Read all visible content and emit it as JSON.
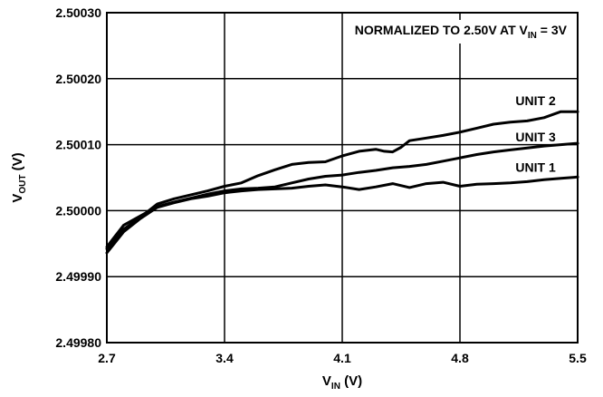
{
  "chart_data": {
    "type": "line",
    "title": "",
    "annotation": {
      "prefix": "NORMALIZED TO 2.50V AT V",
      "sub": "IN",
      "suffix": " = 3V"
    },
    "xlabel": {
      "main": "V",
      "sub": "IN",
      "suffix": " (V)"
    },
    "ylabel": {
      "main": "V",
      "sub": "OUT",
      "suffix": " (V)"
    },
    "xlim": [
      2.7,
      5.5
    ],
    "ylim": [
      2.4998,
      2.5003
    ],
    "xticks": [
      2.7,
      3.4,
      4.1,
      4.8,
      5.5
    ],
    "xtick_labels": [
      "2.7",
      "3.4",
      "4.1",
      "4.8",
      "5.5"
    ],
    "yticks": [
      2.4998,
      2.4999,
      2.5,
      2.5001,
      2.5002,
      2.5003
    ],
    "ytick_labels": [
      "2.49980",
      "2.49990",
      "2.50000",
      "2.50010",
      "2.50020",
      "2.50030"
    ],
    "grid": true,
    "line_color": "#000000",
    "series": [
      {
        "name": "UNIT 2",
        "x": [
          2.7,
          2.8,
          2.9,
          3.0,
          3.1,
          3.2,
          3.3,
          3.4,
          3.5,
          3.6,
          3.7,
          3.8,
          3.9,
          4.0,
          4.1,
          4.2,
          4.3,
          4.35,
          4.4,
          4.45,
          4.5,
          4.6,
          4.7,
          4.8,
          4.9,
          5.0,
          5.1,
          5.2,
          5.3,
          5.4,
          5.5
        ],
        "y": [
          2.499942,
          2.499972,
          2.49999,
          2.50001,
          2.500018,
          2.500024,
          2.50003,
          2.500037,
          2.500042,
          2.500053,
          2.500062,
          2.50007,
          2.500073,
          2.500074,
          2.500083,
          2.50009,
          2.500093,
          2.50009,
          2.500089,
          2.500096,
          2.500106,
          2.50011,
          2.500114,
          2.500119,
          2.500125,
          2.500131,
          2.500134,
          2.500136,
          2.500141,
          2.50015,
          2.50015
        ]
      },
      {
        "name": "UNIT 3",
        "x": [
          2.7,
          2.8,
          2.9,
          3.0,
          3.1,
          3.2,
          3.3,
          3.4,
          3.5,
          3.6,
          3.7,
          3.8,
          3.9,
          4.0,
          4.1,
          4.2,
          4.3,
          4.4,
          4.5,
          4.6,
          4.7,
          4.8,
          4.9,
          5.0,
          5.1,
          5.2,
          5.3,
          5.4,
          5.5
        ],
        "y": [
          2.499945,
          2.499978,
          2.499992,
          2.500006,
          2.500013,
          2.500019,
          2.500025,
          2.50003,
          2.500033,
          2.500034,
          2.500036,
          2.500042,
          2.500048,
          2.500052,
          2.500054,
          2.500058,
          2.500061,
          2.500065,
          2.500067,
          2.50007,
          2.500075,
          2.50008,
          2.500085,
          2.500089,
          2.500092,
          2.500095,
          2.500098,
          2.5001,
          2.500102
        ]
      },
      {
        "name": "UNIT 1",
        "x": [
          2.7,
          2.8,
          2.9,
          3.0,
          3.1,
          3.2,
          3.3,
          3.4,
          3.5,
          3.6,
          3.7,
          3.8,
          3.9,
          4.0,
          4.1,
          4.2,
          4.3,
          4.4,
          4.5,
          4.6,
          4.7,
          4.8,
          4.9,
          5.0,
          5.1,
          5.2,
          5.3,
          5.4,
          5.5
        ],
        "y": [
          2.499936,
          2.499968,
          2.499988,
          2.500005,
          2.500012,
          2.500018,
          2.500022,
          2.500027,
          2.50003,
          2.500032,
          2.500033,
          2.500034,
          2.500037,
          2.500039,
          2.500036,
          2.500032,
          2.500036,
          2.500041,
          2.500035,
          2.500041,
          2.500043,
          2.500037,
          2.50004,
          2.500041,
          2.500042,
          2.500044,
          2.500047,
          2.500049,
          2.500051
        ]
      }
    ],
    "series_labels": [
      {
        "text": "UNIT 2",
        "x": 5.25,
        "y": 2.500167
      },
      {
        "text": "UNIT 3",
        "x": 5.25,
        "y": 2.500112
      },
      {
        "text": "UNIT 1",
        "x": 5.25,
        "y": 2.500066
      }
    ]
  }
}
